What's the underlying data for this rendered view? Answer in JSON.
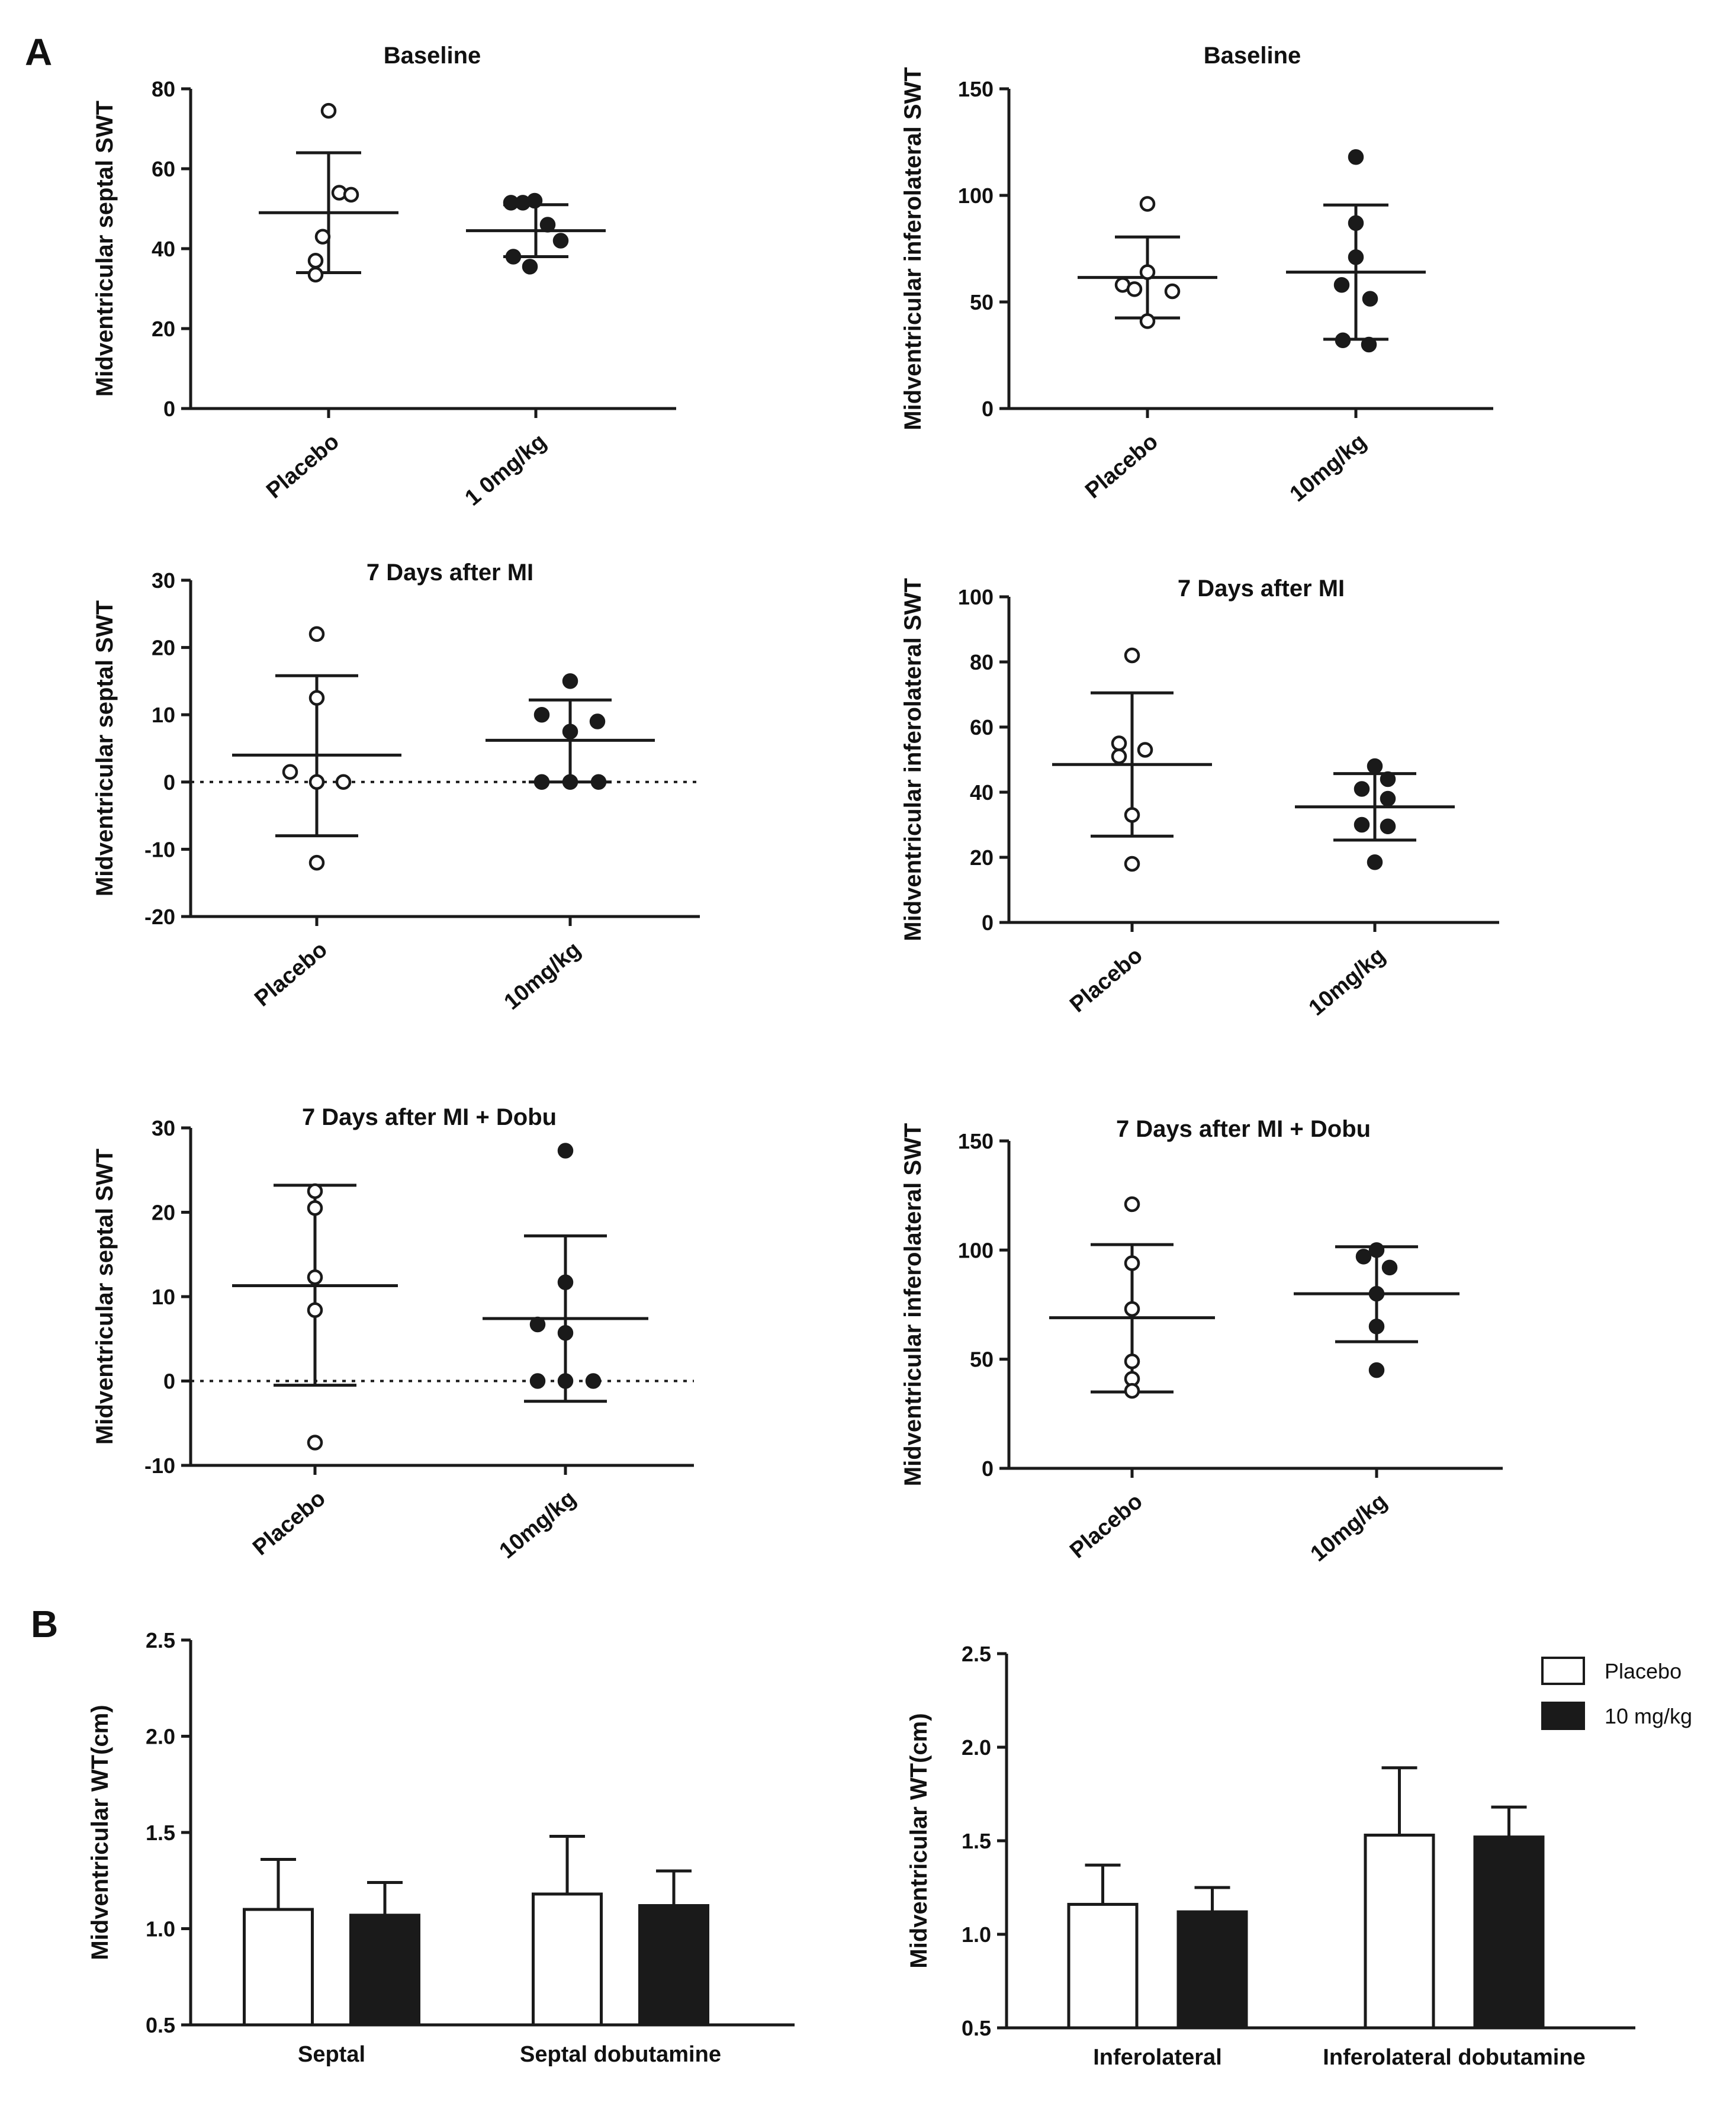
{
  "panels": {
    "a_label": "A",
    "b_label": "B"
  },
  "legend": {
    "items": [
      {
        "label": "Placebo",
        "fill": "#ffffff"
      },
      {
        "label": "10 mg/kg",
        "fill": "#1a1a1a"
      }
    ]
  },
  "chart_data": [
    {
      "type": "scatter",
      "panel": "A",
      "title": "Baseline",
      "ylabel": "Midventricular septal SWT",
      "ylim": [
        0,
        80
      ],
      "yticks": [
        0,
        20,
        40,
        60,
        80
      ],
      "categories": [
        "Placebo",
        "1 0mg/kg"
      ],
      "series": [
        {
          "category": "Placebo",
          "marker": "open",
          "points": [
            74.5,
            54,
            53.5,
            43,
            37,
            33.5
          ],
          "mean": 49,
          "sd_low": 34,
          "sd_high": 64
        },
        {
          "category": "1 0mg/kg",
          "marker": "filled",
          "points": [
            51.5,
            51.5,
            52,
            46,
            42,
            38,
            35.5
          ],
          "mean": 44.5,
          "sd_low": 38,
          "sd_high": 51
        }
      ]
    },
    {
      "type": "scatter",
      "panel": "A",
      "title": "Baseline",
      "ylabel": "Midventricular inferolateral SWT",
      "ylim": [
        0,
        150
      ],
      "yticks": [
        0,
        50,
        100,
        150
      ],
      "categories": [
        "Placebo",
        "10mg/kg"
      ],
      "series": [
        {
          "category": "Placebo",
          "marker": "open",
          "points": [
            96,
            64,
            58,
            56,
            55,
            41
          ],
          "mean": 61.5,
          "sd_low": 42.5,
          "sd_high": 80.5
        },
        {
          "category": "10mg/kg",
          "marker": "filled",
          "points": [
            118,
            87,
            71,
            58,
            51.5,
            32,
            30
          ],
          "mean": 64,
          "sd_low": 32.5,
          "sd_high": 95.5
        }
      ]
    },
    {
      "type": "scatter",
      "panel": "A",
      "title": "7 Days after MI",
      "ylabel": "Midventricular septal SWT",
      "ylim": [
        -20,
        30
      ],
      "yticks": [
        -20,
        -10,
        0,
        10,
        20,
        30
      ],
      "reference_line": 0,
      "categories": [
        "Placebo",
        "10mg/kg"
      ],
      "series": [
        {
          "category": "Placebo",
          "marker": "open",
          "points": [
            22,
            12.5,
            1.5,
            0,
            0,
            -12
          ],
          "mean": 4,
          "sd_low": -8,
          "sd_high": 15.8
        },
        {
          "category": "10mg/kg",
          "marker": "filled",
          "points": [
            15,
            10,
            9,
            7.5,
            0,
            0,
            0
          ],
          "mean": 6.2,
          "sd_low": 0,
          "sd_high": 12.2
        }
      ]
    },
    {
      "type": "scatter",
      "panel": "A",
      "title": "7 Days after MI",
      "ylabel": "Midventricular inferolateral SWT",
      "ylim": [
        0,
        100
      ],
      "yticks": [
        0,
        20,
        40,
        60,
        80,
        100
      ],
      "categories": [
        "Placebo",
        "10mg/kg"
      ],
      "series": [
        {
          "category": "Placebo",
          "marker": "open",
          "points": [
            82,
            55,
            53,
            51,
            33,
            18
          ],
          "mean": 48.5,
          "sd_low": 26.5,
          "sd_high": 70.5
        },
        {
          "category": "10mg/kg",
          "marker": "filled",
          "points": [
            48,
            44,
            41,
            38,
            30,
            29.5,
            18.5
          ],
          "mean": 35.5,
          "sd_low": 25.3,
          "sd_high": 45.7
        }
      ]
    },
    {
      "type": "scatter",
      "panel": "A",
      "title": "7 Days after MI + Dobu",
      "ylabel": "Midventricular septal SWT",
      "ylim": [
        -10,
        30
      ],
      "yticks": [
        -10,
        0,
        10,
        20,
        30
      ],
      "reference_line": 0,
      "categories": [
        "Placebo",
        "10mg/kg"
      ],
      "series": [
        {
          "category": "Placebo",
          "marker": "open",
          "points": [
            22.5,
            20.5,
            12.3,
            8.4,
            -7.3
          ],
          "mean": 11.3,
          "sd_low": -0.5,
          "sd_high": 23.2
        },
        {
          "category": "10mg/kg",
          "marker": "filled",
          "points": [
            27.3,
            11.7,
            6.7,
            5.7,
            0,
            0,
            0
          ],
          "mean": 7.4,
          "sd_low": -2.4,
          "sd_high": 17.2
        }
      ]
    },
    {
      "type": "scatter",
      "panel": "A",
      "title": "7 Days after MI + Dobu",
      "ylabel": "Midventricular inferolateral SWT",
      "ylim": [
        0,
        150
      ],
      "yticks": [
        0,
        50,
        100,
        150
      ],
      "categories": [
        "Placebo",
        "10mg/kg"
      ],
      "series": [
        {
          "category": "Placebo",
          "marker": "open",
          "points": [
            121,
            94,
            73,
            49,
            41,
            35.5
          ],
          "mean": 69,
          "sd_low": 35,
          "sd_high": 102.5
        },
        {
          "category": "10mg/kg",
          "marker": "filled",
          "points": [
            100,
            97,
            92,
            80,
            65,
            45
          ],
          "mean": 80,
          "sd_low": 58,
          "sd_high": 101.5
        }
      ]
    },
    {
      "type": "bar",
      "panel": "B",
      "ylabel": "Midventricular WT(cm)",
      "ylim": [
        0.5,
        2.5
      ],
      "yticks": [
        0.5,
        1.0,
        1.5,
        2.0,
        2.5
      ],
      "ytick_labels": [
        "0.5",
        "1.0",
        "1.5",
        "2.0",
        "2.5"
      ],
      "categories": [
        "Septal",
        "Septal dobutamine"
      ],
      "series": [
        {
          "name": "Placebo",
          "values": [
            1.1,
            1.18
          ],
          "error": [
            0.26,
            0.3
          ]
        },
        {
          "name": "10 mg/kg",
          "values": [
            1.07,
            1.12
          ],
          "error": [
            0.17,
            0.18
          ]
        }
      ]
    },
    {
      "type": "bar",
      "panel": "B",
      "ylabel": "Midventricular WT(cm)",
      "ylim": [
        0.5,
        2.5
      ],
      "yticks": [
        0.5,
        1.0,
        1.5,
        2.0,
        2.5
      ],
      "ytick_labels": [
        "0.5",
        "1.0",
        "1.5",
        "2.0",
        "2.5"
      ],
      "categories": [
        "Inferolateral",
        "Inferolateral dobutamine"
      ],
      "legend_position": "top-right",
      "series": [
        {
          "name": "Placebo",
          "values": [
            1.16,
            1.53
          ],
          "error": [
            0.21,
            0.36
          ]
        },
        {
          "name": "10 mg/kg",
          "values": [
            1.12,
            1.52
          ],
          "error": [
            0.13,
            0.16
          ]
        }
      ]
    }
  ]
}
